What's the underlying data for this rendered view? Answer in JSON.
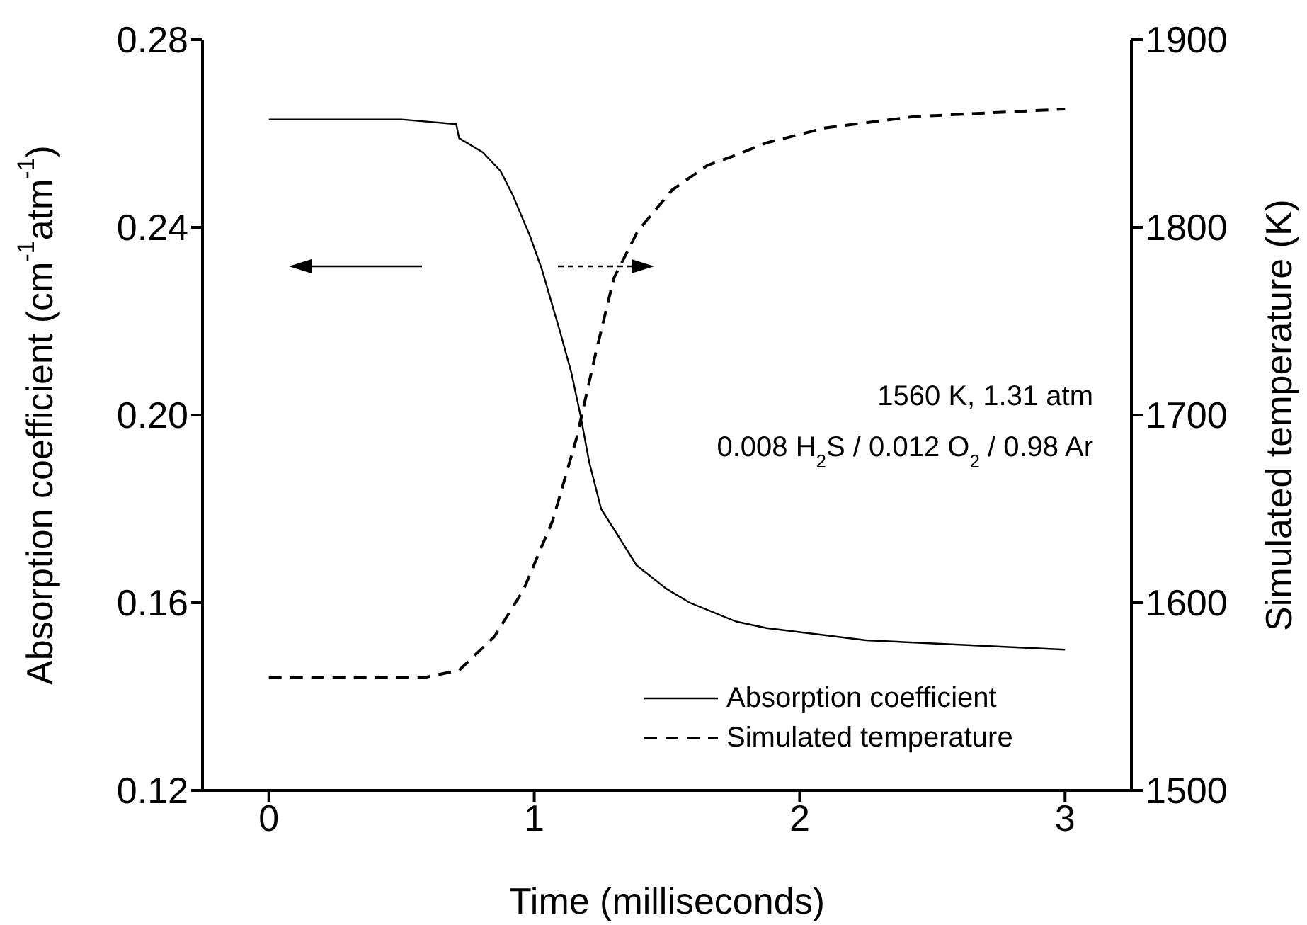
{
  "chart_data": {
    "type": "line",
    "xlabel": "Time (milliseconds)",
    "ylabel": "Absorption coefficient (cm$^{-1}$atm$^{-1}$)",
    "y2label": "Simulated temperature (K)",
    "xlim": [
      -0.25,
      3.25
    ],
    "xticks": [
      0,
      1,
      2,
      3
    ],
    "ylim": [
      0.12,
      0.28
    ],
    "yticks": [
      {
        "value": 0.12,
        "label": "0.12"
      },
      {
        "value": 0.16,
        "label": "0.16"
      },
      {
        "value": 0.2,
        "label": "0.20"
      },
      {
        "value": 0.24,
        "label": "0.24"
      },
      {
        "value": 0.28,
        "label": "0.28"
      }
    ],
    "y2lim": [
      1500,
      1900
    ],
    "y2ticks": [
      1500,
      1600,
      1700,
      1800,
      1900
    ],
    "legend": "bottom right",
    "grid": false,
    "annotations": [
      "1560 K, 1.31 atm",
      "0.008 H$_{2}$S / 0.012 O$_{2}$ / 0.98 Ar"
    ],
    "series": [
      {
        "name": "Absorption coefficient",
        "color": "#000000",
        "line_style": "solid",
        "x": [
          0,
          0.5,
          0.706,
          0.717,
          0.806,
          0.873,
          0.918,
          0.985,
          1.029,
          1.096,
          1.14,
          1.174,
          1.207,
          1.252,
          1.319,
          1.385,
          1.497,
          1.586,
          1.76,
          1.875,
          2.25,
          3.0
        ],
        "values": [
          0.263,
          0.263,
          0.262,
          0.259,
          0.256,
          0.252,
          0.247,
          0.238,
          0.231,
          0.218,
          0.209,
          0.2,
          0.19,
          0.18,
          0.174,
          0.168,
          0.163,
          0.16,
          0.156,
          0.1546,
          0.152,
          0.15
        ]
      },
      {
        "name": "Simulated temperature",
        "color": "#000000",
        "line_style": "dashed",
        "axis": "y2",
        "x": [
          0,
          0.58,
          0.717,
          0.85,
          0.96,
          1.07,
          1.16,
          1.23,
          1.3,
          1.39,
          1.52,
          1.652,
          1.75,
          1.875,
          2.097,
          2.43,
          3.0
        ],
        "values": [
          1560,
          1560,
          1564,
          1582,
          1607,
          1644,
          1688,
          1732,
          1773,
          1798,
          1820,
          1833,
          1838,
          1845,
          1853,
          1859,
          1863
        ]
      }
    ]
  }
}
